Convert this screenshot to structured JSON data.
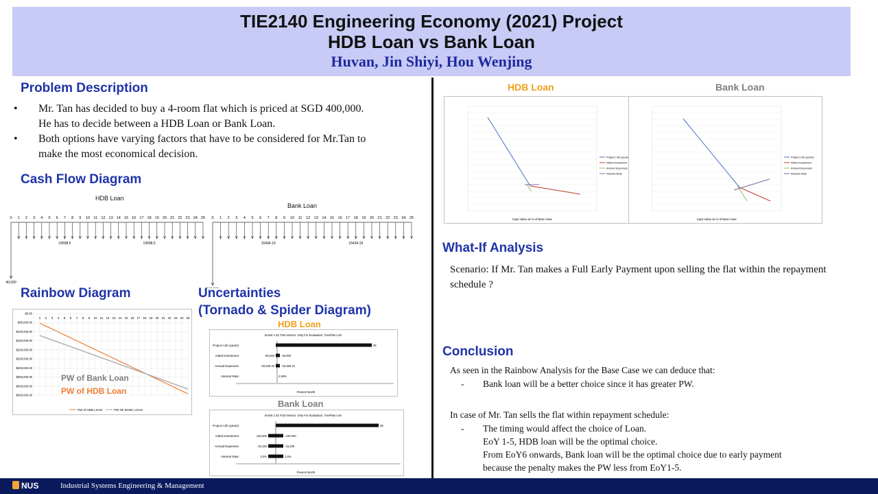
{
  "header": {
    "title_line1": "TIE2140 Engineering Economy (2021) Project",
    "title_line2": "HDB Loan vs Bank Loan",
    "authors": "Huvan, Jin Shiyi, Hou Wenjing"
  },
  "problem": {
    "heading": "Problem Description",
    "bullets": [
      "Mr. Tan has decided to buy a 4-room flat which is priced at SGD 400,000. He has to decide between a HDB Loan or Bank Loan.",
      "Both options have varying factors  that have to be considered for Mr.Tan to make the most economical decision."
    ]
  },
  "cashflow": {
    "heading": "Cash Flow Diagram",
    "hdb_label": "HDB Loan",
    "bank_label": "Bank Loan",
    "hdb_payment_label": "19598.5",
    "bank_payment_label": "15434.19",
    "hdb_initial": "40,000",
    "bank_initial": "100,000",
    "years": [
      "0",
      "1",
      "2",
      "3",
      "4",
      "5",
      "6",
      "7",
      "8",
      "9",
      "10",
      "11",
      "12",
      "13",
      "14",
      "15",
      "16",
      "17",
      "18",
      "19",
      "20",
      "21",
      "22",
      "23",
      "24",
      "25"
    ]
  },
  "rainbow": {
    "heading": "Rainbow Diagram",
    "label_bank": "PW of Bank Loan",
    "label_hdb": "PW of HDB Loan",
    "legend": [
      "PW of HDB LOAN",
      "PW OF BANK LOAN"
    ],
    "y_ticks": [
      "$0.00",
      "-$50,000.00",
      "-$100,000.00",
      "-$150,000.00",
      "-$200,000.00",
      "-$250,000.00",
      "-$300,000.00",
      "-$350,000.00",
      "-$400,000.00",
      "-$450,000.00",
      "-$500,000.00"
    ],
    "colors": {
      "hdb": "#ed7d31",
      "bank": "#a5a5a5"
    }
  },
  "uncertainties": {
    "heading_line1": "Uncertainties",
    "heading_line2": "(Tornado & Spider Diagram)",
    "hdb_label": "HDB Loan",
    "bank_label": "Bank Loan",
    "trial_note": "SensIt 1.53 Trial Version, Only For Evaluation, TreePlan.com",
    "axis_title": "Present Worth",
    "hdb_rows": [
      {
        "name": "Project Life (years)",
        "left": "",
        "right": "35"
      },
      {
        "name": "Initial Investment",
        "left": "-60,000",
        "right": "-40,000"
      },
      {
        "name": "Annual Expenses",
        "left": "-20,039.40",
        "right": "-18,380.24"
      },
      {
        "name": "Interest Rate",
        "left": "",
        "right": "2.80%"
      }
    ],
    "bank_rows": [
      {
        "name": "Project Life (years)",
        "left": "",
        "right": "35"
      },
      {
        "name": "Initial Investment",
        "left": "-120,000",
        "right": "-100,000"
      },
      {
        "name": "Annual Expenses",
        "left": "-16,193",
        "right": "-15,209"
      },
      {
        "name": "Interest Rate",
        "left": "2.0%",
        "right": "2.6%"
      }
    ]
  },
  "spider": {
    "hdb_label": "HDB Loan",
    "bank_label": "Bank Loan",
    "x_title": "Input Value as % of Base Case",
    "legend": [
      "Project Life (years)",
      "Initial Investment",
      "Annual Expenses",
      "Interest Rate"
    ],
    "colors": {
      "life": "#4472c4",
      "initial": "#c0392b",
      "expenses": "#9bbb59",
      "interest": "#8064a2"
    }
  },
  "whatif": {
    "heading": "What-If Analysis",
    "text": "Scenario:  If Mr. Tan makes a Full Early Payment upon selling  the flat within  the repayment schedule ?"
  },
  "conclusion": {
    "heading": "Conclusion",
    "intro": "As seen in the Rainbow  Analysis  for the Base Case we can deduce that:",
    "point1": "Bank loan  will  be a better choice since it has greater PW.",
    "case_intro": "In case of  Mr. Tan sells the flat within  repayment  schedule:",
    "point2_line1": "The timing  would affect the choice of Loan.",
    "point2_line2": "EoY 1-5, HDB loan  will  be the optimal  choice.",
    "point2_line3": "From EoY6 onwards, Bank loan  will  be the optimal  choice due to early payment",
    "point2_line4": "because the penalty  makes the PW less from  EoY1-5."
  },
  "footer": {
    "logo": "NUS",
    "department": "Industrial Systems Engineering & Management"
  }
}
